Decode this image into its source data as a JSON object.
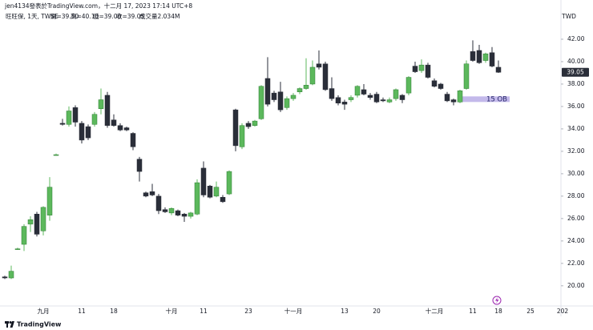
{
  "header": {
    "author_line": "jen4134發表於TradingView.com，十二月 17, 2023 17:14 UTC+8",
    "symbol": "旺旺保, 1天, TWSE",
    "ohlc": [
      "開=39.50",
      "高=40.10",
      "低=39.00",
      "收=39.05"
    ],
    "volume": "成交量2.034M"
  },
  "footer": {
    "brand": "TradingView"
  },
  "chart_data": {
    "type": "candlestick",
    "y_label": "TWD",
    "categories": [
      null,
      null,
      null,
      null,
      null,
      null,
      "九月",
      null,
      null,
      null,
      null,
      null,
      "11",
      null,
      null,
      null,
      null,
      "18",
      null,
      null,
      null,
      null,
      null,
      null,
      null,
      null,
      "十月",
      null,
      null,
      null,
      null,
      "11",
      null,
      null,
      null,
      null,
      null,
      null,
      "23",
      null,
      null,
      null,
      null,
      null,
      null,
      "十一月",
      null,
      null,
      null,
      null,
      null,
      null,
      null,
      "13",
      null,
      null,
      null,
      null,
      "20",
      null,
      null,
      null,
      null,
      null,
      null,
      null,
      null,
      "十二月",
      null,
      null,
      null,
      null,
      null,
      "11",
      null,
      null,
      null,
      "18",
      null,
      null,
      null,
      null,
      "25",
      null,
      null,
      null,
      null,
      "202"
    ],
    "open": [
      20.8,
      20.7,
      23.3,
      23.7,
      25.5,
      26.4,
      24.9,
      26.3,
      31.7,
      34.5,
      34.4,
      35.9,
      34.5,
      34.2,
      34.4,
      35.8,
      37.0,
      34.8,
      34.3,
      34.1,
      33.6,
      31.3,
      28.3,
      28.4,
      28.0,
      26.8,
      26.5,
      26.7,
      26.4,
      26.2,
      26.4,
      30.5,
      28.9,
      28.0,
      27.9,
      28.2,
      35.7,
      32.4,
      34.5,
      34.3,
      34.9,
      38.5,
      37.2,
      37.3,
      35.9,
      36.7,
      37.3,
      37.6,
      38.0,
      39.8,
      39.8,
      37.6,
      36.8,
      36.4,
      36.6,
      37.0,
      37.5,
      37.0,
      37.1,
      36.6,
      36.4,
      36.7,
      37.0,
      37.2,
      39.6,
      39.2,
      39.7,
      38.3,
      38.0,
      37.1,
      36.6,
      36.4,
      37.6,
      40.9,
      41.0,
      40.1,
      40.8,
      39.5,
      null,
      null,
      null,
      null,
      null,
      null,
      null,
      null,
      null,
      null
    ],
    "high": [
      20.9,
      21.8,
      23.4,
      25.5,
      26.2,
      26.6,
      27.1,
      29.7,
      31.8,
      34.9,
      36.0,
      36.1,
      34.7,
      34.4,
      35.5,
      37.6,
      37.3,
      35.3,
      34.5,
      34.2,
      33.7,
      31.5,
      28.4,
      29.1,
      28.2,
      27.0,
      27.0,
      26.8,
      26.5,
      26.6,
      29.5,
      31.1,
      29.0,
      29.3,
      28.1,
      30.3,
      35.8,
      34.5,
      34.7,
      34.8,
      37.9,
      40.4,
      37.4,
      38.2,
      36.9,
      37.2,
      37.7,
      40.3,
      40.1,
      41.0,
      40.0,
      38.6,
      37.0,
      36.6,
      37.0,
      37.9,
      38.0,
      37.2,
      37.3,
      36.8,
      36.8,
      37.6,
      37.1,
      38.7,
      40.0,
      40.2,
      39.9,
      38.5,
      38.1,
      37.3,
      36.7,
      37.5,
      40.1,
      41.9,
      41.5,
      40.8,
      41.3,
      40.1,
      null,
      null,
      null,
      null,
      null,
      null,
      null,
      null,
      null,
      null
    ],
    "low": [
      20.6,
      20.6,
      23.2,
      23.1,
      24.8,
      24.4,
      24.5,
      25.8,
      31.6,
      34.3,
      34.2,
      34.2,
      32.7,
      33.0,
      34.2,
      35.3,
      34.1,
      34.2,
      33.8,
      33.8,
      32.1,
      29.3,
      27.9,
      28.0,
      26.4,
      26.5,
      26.3,
      26.2,
      25.7,
      26.0,
      26.3,
      27.9,
      27.8,
      27.9,
      27.4,
      28.1,
      32.0,
      32.2,
      34.0,
      34.2,
      34.8,
      36.0,
      36.4,
      35.5,
      35.7,
      36.5,
      37.1,
      37.5,
      37.9,
      39.3,
      37.4,
      36.5,
      36.1,
      35.7,
      36.4,
      36.8,
      37.0,
      36.6,
      36.3,
      36.4,
      36.3,
      36.5,
      36.3,
      37.0,
      39.0,
      39.0,
      38.5,
      37.7,
      37.5,
      36.4,
      36.1,
      36.3,
      37.5,
      40.0,
      39.8,
      39.9,
      39.5,
      39.0,
      null,
      null,
      null,
      null,
      null,
      null,
      null,
      null,
      null,
      null
    ],
    "close": [
      20.7,
      21.3,
      23.3,
      25.3,
      25.9,
      24.6,
      27.0,
      28.8,
      31.7,
      34.4,
      35.6,
      34.6,
      33.0,
      33.2,
      35.3,
      36.6,
      34.3,
      34.3,
      33.9,
      33.9,
      32.4,
      30.2,
      28.0,
      28.1,
      26.7,
      26.6,
      26.9,
      26.3,
      26.2,
      26.5,
      29.2,
      28.1,
      27.9,
      28.8,
      27.5,
      30.2,
      32.5,
      34.3,
      34.2,
      34.7,
      37.8,
      36.2,
      36.6,
      35.7,
      36.7,
      37.0,
      37.6,
      37.9,
      39.5,
      39.5,
      37.5,
      36.7,
      36.3,
      36.2,
      36.8,
      37.8,
      37.1,
      36.8,
      36.4,
      36.5,
      36.6,
      37.5,
      36.6,
      38.6,
      39.1,
      39.7,
      38.6,
      37.8,
      37.6,
      36.5,
      36.4,
      37.4,
      39.8,
      40.1,
      39.9,
      40.7,
      39.6,
      39.05,
      null,
      null,
      null,
      null,
      null,
      null,
      null,
      null,
      null,
      null
    ],
    "up_color": "#5cb85c",
    "down_color": "#2a2e39",
    "ylim": [
      18.2,
      45.5
    ],
    "yticks": [
      {
        "value": 20,
        "label": "20.00"
      },
      {
        "value": 22,
        "label": "22.00"
      },
      {
        "value": 24,
        "label": "24.00"
      },
      {
        "value": 26,
        "label": "26.00"
      },
      {
        "value": 28,
        "label": "28.00"
      },
      {
        "value": 30,
        "label": "30.00"
      },
      {
        "value": 32,
        "label": "32.00"
      },
      {
        "value": 34,
        "label": "34.00"
      },
      {
        "value": 36,
        "label": "36.00"
      },
      {
        "value": 38,
        "label": "38.00"
      },
      {
        "value": 40,
        "label": "40.00"
      },
      {
        "value": 42,
        "label": "42.00"
      }
    ],
    "last_price": {
      "value": 39.05,
      "label": "39.05"
    },
    "zone": {
      "label": "15 OB",
      "top": 36.9,
      "bottom": 36.4,
      "start": 71,
      "color": "#b4a7e5"
    }
  }
}
